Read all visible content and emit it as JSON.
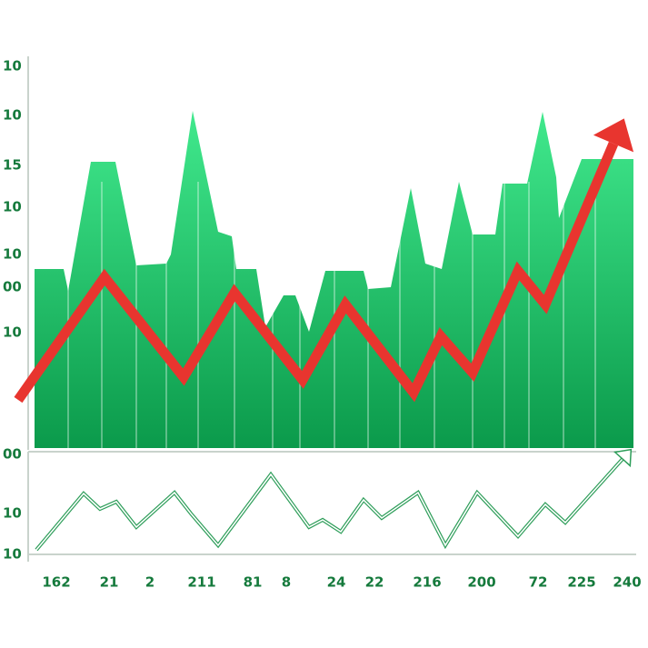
{
  "chart_data": [
    {
      "type": "area",
      "xlim": [
        0,
        700
      ],
      "ylim": [
        0,
        428
      ],
      "y_labels": [
        "10",
        "10",
        "15",
        "10",
        "10",
        "00",
        "10"
      ],
      "series": [
        {
          "type": "area",
          "color": "#1fbf63",
          "x": [
            38,
            70,
            75,
            100,
            127,
            150,
            183,
            188,
            212,
            220,
            240,
            255,
            260,
            282,
            292,
            312,
            325,
            340,
            358,
            400,
            405,
            430,
            452,
            468,
            486,
            505,
            520,
            545,
            553,
            580,
            597,
            612,
            615,
            640,
            697
          ],
          "values": [
            197,
            197,
            173,
            315,
            315,
            201,
            203,
            213,
            371,
            333,
            238,
            233,
            197,
            197,
            133,
            168,
            168,
            128,
            195,
            195,
            175,
            177,
            286,
            203,
            197,
            293,
            235,
            235,
            291,
            291,
            370,
            298,
            253,
            318,
            318
          ]
        },
        {
          "type": "line",
          "color": "#e8352f",
          "x": [
            20,
            115,
            202,
            258,
            333,
            380,
            455,
            485,
            520,
            570,
            600,
            675
          ],
          "values": [
            53,
            188,
            78,
            171,
            75,
            158,
            61,
            123,
            83,
            195,
            158,
            335
          ]
        }
      ]
    },
    {
      "type": "line",
      "xlim": [
        0,
        700
      ],
      "ylim": [
        0,
        110
      ],
      "y_labels": [
        "00",
        "10",
        "10"
      ],
      "x_labels": [
        "162",
        "21",
        "2",
        "211",
        "81",
        "8",
        "24",
        "22",
        "216",
        "200",
        "72",
        "225",
        "240"
      ],
      "series": [
        {
          "type": "line",
          "color": "#2e9e5a",
          "x": [
            40,
            92,
            110,
            128,
            150,
            192,
            210,
            240,
            298,
            340,
            355,
            375,
            400,
            420,
            460,
            490,
            525,
            570,
            600,
            622,
            685
          ],
          "values": [
            5,
            67,
            50,
            58,
            30,
            68,
            45,
            10,
            88,
            30,
            38,
            25,
            60,
            40,
            68,
            10,
            68,
            20,
            55,
            35,
            105
          ]
        }
      ]
    }
  ]
}
